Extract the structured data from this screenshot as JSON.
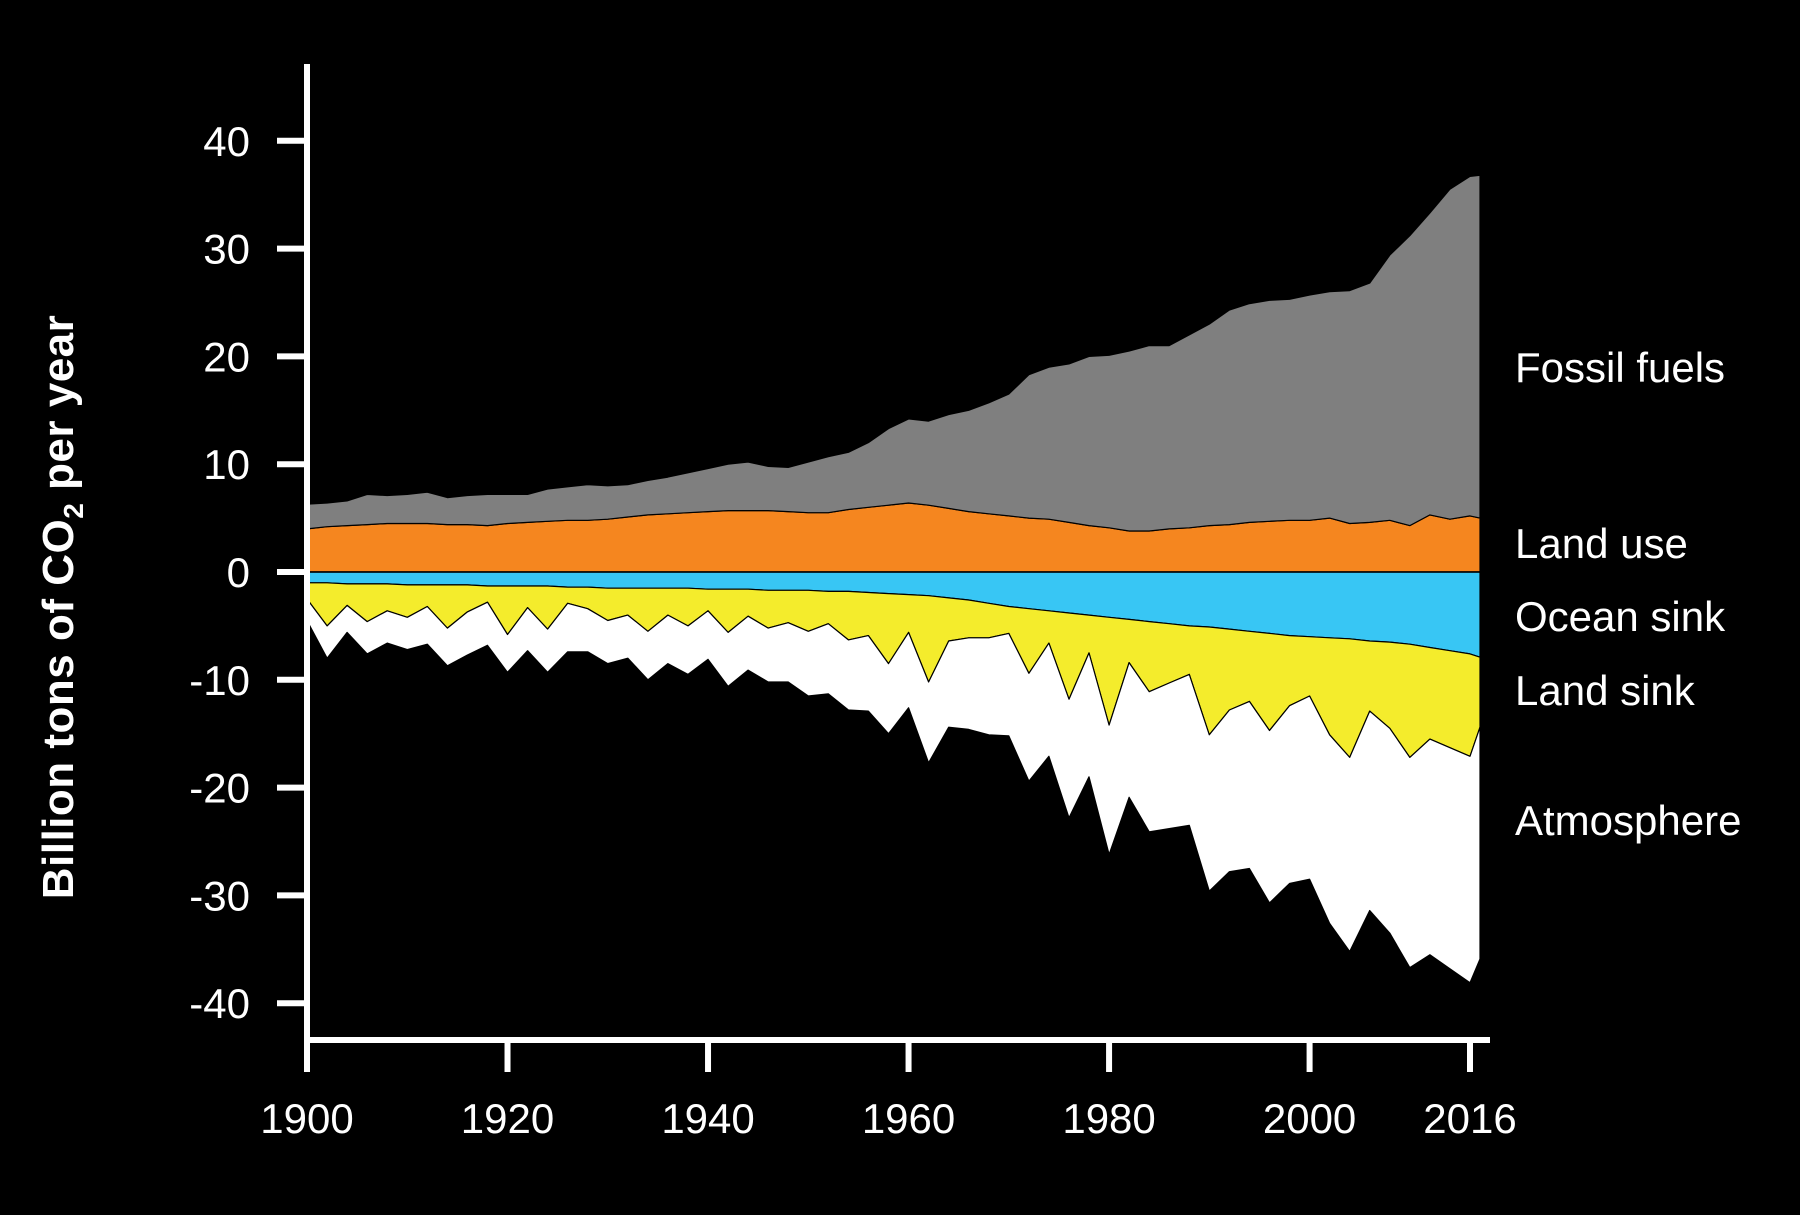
{
  "chart_data": {
    "type": "area",
    "title": "",
    "ylabel": {
      "main": "Billion tons of CO",
      "sub": "2",
      "suffix": " per year"
    },
    "xlabel": "",
    "xlim": [
      1900,
      2017
    ],
    "ylim": [
      -44,
      47
    ],
    "xticks": [
      1900,
      1920,
      1940,
      1960,
      1980,
      2000,
      2016
    ],
    "yticks": [
      40,
      30,
      20,
      10,
      0,
      -10,
      -20,
      -30,
      -40
    ],
    "x": [
      1900,
      1902,
      1904,
      1906,
      1908,
      1910,
      1912,
      1914,
      1916,
      1918,
      1920,
      1922,
      1924,
      1926,
      1928,
      1930,
      1932,
      1934,
      1936,
      1938,
      1940,
      1942,
      1944,
      1946,
      1948,
      1950,
      1952,
      1954,
      1956,
      1958,
      1960,
      1962,
      1964,
      1966,
      1968,
      1970,
      1972,
      1974,
      1976,
      1978,
      1980,
      1982,
      1984,
      1986,
      1988,
      1990,
      1992,
      1994,
      1996,
      1998,
      2000,
      2002,
      2004,
      2006,
      2008,
      2010,
      2012,
      2014,
      2016,
      2017
    ],
    "series": [
      {
        "name": "Land use",
        "color": "#f5861f",
        "values": [
          4.0,
          4.2,
          4.3,
          4.4,
          4.5,
          4.5,
          4.5,
          4.4,
          4.4,
          4.3,
          4.5,
          4.6,
          4.7,
          4.8,
          4.8,
          4.9,
          5.1,
          5.3,
          5.4,
          5.5,
          5.6,
          5.7,
          5.7,
          5.7,
          5.6,
          5.5,
          5.5,
          5.8,
          6.0,
          6.2,
          6.4,
          6.2,
          5.9,
          5.6,
          5.4,
          5.2,
          5.0,
          4.9,
          4.6,
          4.3,
          4.1,
          3.8,
          3.8,
          4.0,
          4.1,
          4.3,
          4.4,
          4.6,
          4.7,
          4.8,
          4.8,
          5.0,
          4.5,
          4.6,
          4.8,
          4.3,
          5.3,
          4.9,
          5.2,
          5.0
        ]
      },
      {
        "name": "Fossil fuels",
        "color": "#7f7f7f",
        "values": [
          2.3,
          2.2,
          2.3,
          2.8,
          2.6,
          2.7,
          2.9,
          2.5,
          2.7,
          2.9,
          2.7,
          2.6,
          3.0,
          3.1,
          3.3,
          3.1,
          3.0,
          3.2,
          3.4,
          3.7,
          4.0,
          4.3,
          4.5,
          4.1,
          4.1,
          4.7,
          5.2,
          5.3,
          6.0,
          7.1,
          7.8,
          7.8,
          8.7,
          9.4,
          10.3,
          11.3,
          13.3,
          14.1,
          14.7,
          15.7,
          16.0,
          16.7,
          17.2,
          17.0,
          17.9,
          18.7,
          19.9,
          20.3,
          20.5,
          20.5,
          20.9,
          21.0,
          21.6,
          22.2,
          24.6,
          26.9,
          28.0,
          30.6,
          31.5,
          31.8
        ]
      },
      {
        "name": "Ocean sink",
        "color": "#38c6f4",
        "values": [
          -1.0,
          -1.0,
          -1.1,
          -1.1,
          -1.1,
          -1.2,
          -1.2,
          -1.2,
          -1.2,
          -1.3,
          -1.3,
          -1.3,
          -1.3,
          -1.4,
          -1.4,
          -1.5,
          -1.5,
          -1.5,
          -1.5,
          -1.5,
          -1.6,
          -1.6,
          -1.6,
          -1.7,
          -1.7,
          -1.7,
          -1.8,
          -1.8,
          -1.9,
          -2.0,
          -2.1,
          -2.2,
          -2.4,
          -2.6,
          -2.9,
          -3.2,
          -3.4,
          -3.6,
          -3.8,
          -4.0,
          -4.2,
          -4.4,
          -4.6,
          -4.8,
          -5.0,
          -5.1,
          -5.3,
          -5.5,
          -5.7,
          -5.9,
          -6.0,
          -6.1,
          -6.2,
          -6.4,
          -6.5,
          -6.7,
          -7.0,
          -7.3,
          -7.6,
          -7.9
        ]
      },
      {
        "name": "Land sink",
        "color": "#f4ec2c",
        "values": [
          -1.5,
          -4.0,
          -2.0,
          -3.5,
          -2.5,
          -3.0,
          -2.0,
          -4.0,
          -2.5,
          -1.5,
          -4.5,
          -2.0,
          -4.0,
          -1.5,
          -2.0,
          -3.0,
          -2.5,
          -4.0,
          -2.5,
          -3.5,
          -2.0,
          -4.0,
          -2.5,
          -3.5,
          -3.0,
          -3.8,
          -3.0,
          -4.5,
          -4.0,
          -6.5,
          -3.5,
          -8.0,
          -4.0,
          -3.5,
          -3.2,
          -2.5,
          -6.0,
          -3.0,
          -8.0,
          -3.5,
          -10.0,
          -4.0,
          -6.5,
          -5.5,
          -4.5,
          -10.0,
          -7.5,
          -6.5,
          -9.0,
          -6.5,
          -5.5,
          -9.0,
          -11.0,
          -6.5,
          -8.0,
          -10.5,
          -8.5,
          -9.0,
          -9.5,
          -6.5
        ]
      },
      {
        "name": "Atmosphere",
        "color": "#ffffff",
        "values": [
          -2.0,
          -3.0,
          -2.5,
          -3.0,
          -3.0,
          -3.0,
          -3.5,
          -3.5,
          -4.0,
          -4.0,
          -3.5,
          -4.0,
          -4.0,
          -4.5,
          -4.0,
          -4.0,
          -4.0,
          -4.5,
          -4.5,
          -4.5,
          -4.5,
          -5.0,
          -5.0,
          -5.0,
          -5.5,
          -6.0,
          -6.5,
          -6.5,
          -7.0,
          -6.5,
          -7.0,
          -7.5,
          -8.0,
          -8.5,
          -9.0,
          -9.5,
          -10.0,
          -10.5,
          -11.0,
          -11.5,
          -12.0,
          -12.5,
          -13.0,
          -13.5,
          -14.0,
          -14.5,
          -15.0,
          -15.5,
          -16.0,
          -16.5,
          -17.0,
          -17.5,
          -18.0,
          -18.5,
          -19.0,
          -19.5,
          -20.0,
          -20.5,
          -21.0,
          -21.5
        ]
      }
    ],
    "legend": "right, labels at end of each series",
    "grid": false,
    "axis_color": "#ffffff",
    "background": "#000000"
  }
}
